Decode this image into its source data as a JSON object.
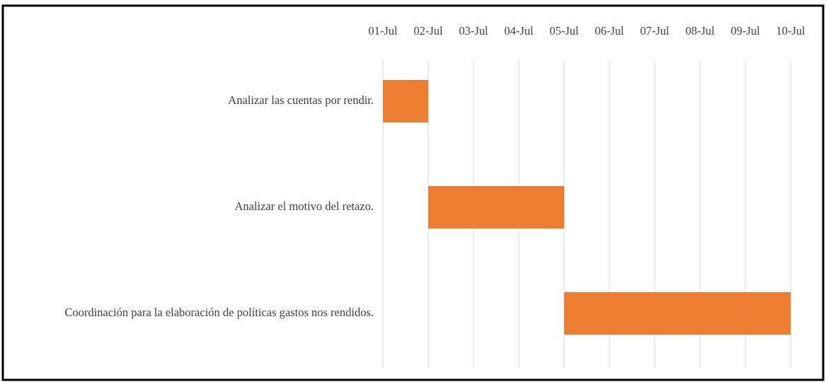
{
  "chart_data": {
    "type": "gantt",
    "categories": [
      "Analizar las cuentas por rendir.",
      "Analizar el motivo del retazo.",
      "Coordinación para la elaboración de políticas gastos nos rendidos."
    ],
    "start": [
      1,
      2,
      5
    ],
    "end": [
      2,
      5,
      10
    ],
    "color": "#ed7d31",
    "xlim": [
      1,
      10
    ],
    "xticks": [
      {
        "value": 1,
        "label": "01-Jul"
      },
      {
        "value": 2,
        "label": "02-Jul"
      },
      {
        "value": 3,
        "label": "03-Jul"
      },
      {
        "value": 4,
        "label": "04-Jul"
      },
      {
        "value": 5,
        "label": "05-Jul"
      },
      {
        "value": 6,
        "label": "06-Jul"
      },
      {
        "value": 7,
        "label": "07-Jul"
      },
      {
        "value": 8,
        "label": "08-Jul"
      },
      {
        "value": 9,
        "label": "09-Jul"
      },
      {
        "value": 10,
        "label": "10-Jul"
      }
    ],
    "grid": true
  }
}
